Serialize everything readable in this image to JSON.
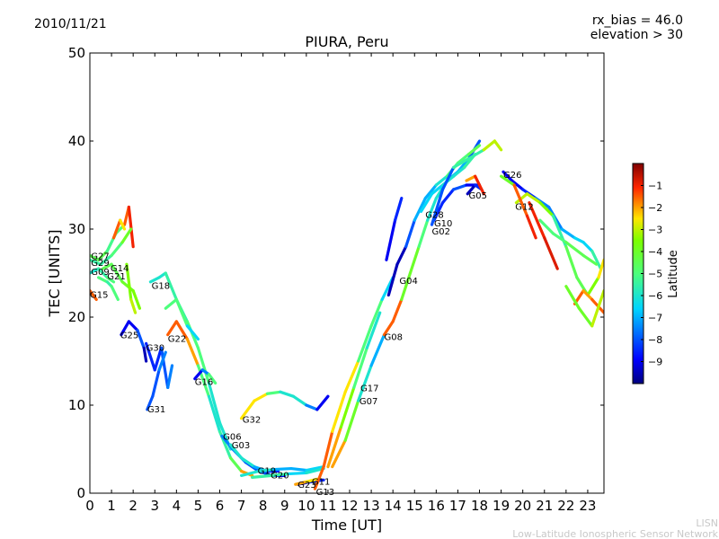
{
  "header": {
    "date": "2010/11/21",
    "rx_bias": "rx_bias = 46.0",
    "elevation": "elevation > 30"
  },
  "footer": {
    "line1": "LISN",
    "line2": "Low-Latitude Ionospheric Sensor Network"
  },
  "chart_data": {
    "type": "line",
    "title": "PIURA, Peru",
    "xlabel": "Time [UT]",
    "ylabel": "TEC [UNITS]",
    "xlim": [
      0,
      23.75
    ],
    "ylim": [
      0,
      50
    ],
    "xticks": [
      0,
      1,
      2,
      3,
      4,
      5,
      6,
      7,
      8,
      9,
      10,
      11,
      12,
      13,
      14,
      15,
      16,
      17,
      18,
      19,
      20,
      21,
      22,
      23
    ],
    "yticks": [
      0,
      10,
      20,
      30,
      40,
      50
    ],
    "grid": false,
    "colorbar": {
      "label": "Latitude",
      "range": [
        -10,
        0
      ],
      "ticks": [
        -1,
        -2,
        -3,
        -4,
        -5,
        -6,
        -7,
        -8,
        -9
      ]
    },
    "series": [
      {
        "name": "G27",
        "label_at": [
          0.05,
          27.0
        ],
        "lat": [
          -4.5,
          -5.2,
          -5.0,
          -1.5,
          -1.0
        ],
        "x": [
          0.0,
          0.4,
          0.8,
          1.2,
          1.6,
          1.8,
          2.0
        ],
        "y": [
          27.0,
          26.5,
          27.5,
          29.5,
          30.5,
          32.5,
          28.0
        ]
      },
      {
        "name": "G29",
        "label_at": [
          0.05,
          26.2
        ],
        "lat": [
          -5.5,
          -5.0,
          -4.0
        ],
        "x": [
          0.0,
          0.5,
          1.0,
          1.5,
          1.9
        ],
        "y": [
          26.5,
          26.0,
          27.0,
          28.5,
          30.0
        ]
      },
      {
        "name": "G14",
        "label_at": [
          0.95,
          25.6
        ],
        "lat": [
          -4.5,
          -4.0,
          -3.5
        ],
        "x": [
          0.6,
          1.0,
          1.5,
          2.0,
          2.3
        ],
        "y": [
          25.5,
          26.0,
          24.0,
          23.0,
          21.0
        ]
      },
      {
        "name": "G09",
        "label_at": [
          0.05,
          25.2
        ],
        "lat": [
          -6.0,
          -5.5,
          -5.0
        ],
        "x": [
          0.0,
          0.4,
          0.8,
          1.1
        ],
        "y": [
          25.0,
          25.5,
          24.5,
          24.0
        ]
      },
      {
        "name": "G21",
        "label_at": [
          0.8,
          24.7
        ],
        "lat": [
          -5.0,
          -5.5,
          -5.0
        ],
        "x": [
          0.4,
          0.8,
          1.0,
          1.3
        ],
        "y": [
          24.5,
          24.0,
          23.5,
          22.0
        ]
      },
      {
        "name": "G15",
        "label_at": [
          0.0,
          22.6
        ],
        "lat": [
          -1.5,
          -2.0
        ],
        "x": [
          0.0,
          0.3
        ],
        "y": [
          23.0,
          22.0
        ]
      },
      {
        "name": "G25",
        "label_at": [
          1.4,
          18.0
        ],
        "lat": [
          -9.0,
          -8.0,
          -9.5
        ],
        "x": [
          1.45,
          1.8,
          2.2,
          2.5,
          2.6
        ],
        "y": [
          18.0,
          19.5,
          18.5,
          16.5,
          15.0
        ]
      },
      {
        "name": "G18",
        "label_at": [
          2.85,
          23.6
        ],
        "lat": [
          -6.0,
          -5.5,
          -5.0,
          -6.0
        ],
        "x": [
          2.8,
          3.2,
          3.5,
          4.0,
          4.5,
          5.0,
          5.5,
          6.0,
          6.5
        ],
        "y": [
          24.0,
          24.5,
          25.0,
          22.0,
          19.5,
          16.5,
          12.5,
          8.0,
          5.0
        ]
      },
      {
        "name": "G30",
        "label_at": [
          2.6,
          16.6
        ],
        "lat": [
          -8.5,
          -8.0,
          -7.5
        ],
        "x": [
          2.6,
          3.0,
          3.3,
          3.6,
          3.8
        ],
        "y": [
          17.0,
          14.0,
          16.5,
          12.0,
          14.5
        ]
      },
      {
        "name": "G22",
        "label_at": [
          3.6,
          17.6
        ],
        "lat": [
          -1.5,
          -2.0,
          -5.0,
          -6.0,
          -5.5,
          -4.5,
          -2.0
        ],
        "x": [
          3.6,
          4.0,
          4.5,
          5.0,
          5.5,
          6.0,
          6.5,
          7.0,
          7.5
        ],
        "y": [
          18.0,
          19.5,
          17.5,
          14.5,
          11.0,
          7.0,
          4.0,
          2.5,
          2.0
        ]
      },
      {
        "name": "G16",
        "label_at": [
          4.85,
          12.7
        ],
        "lat": [
          -9.0,
          -7.5,
          -5.0
        ],
        "x": [
          4.85,
          5.2,
          5.5,
          5.8
        ],
        "y": [
          13.0,
          14.0,
          13.5,
          12.5
        ]
      },
      {
        "name": "G31",
        "label_at": [
          2.65,
          9.6
        ],
        "lat": [
          -8.0,
          -7.5
        ],
        "x": [
          2.65,
          2.9,
          3.2,
          3.5
        ],
        "y": [
          9.5,
          11.0,
          14.0,
          16.0
        ]
      },
      {
        "name": "G32",
        "label_at": [
          7.05,
          8.4
        ],
        "lat": [
          -2.5,
          -5.0,
          -6.0,
          -7.5,
          -9.0
        ],
        "x": [
          7.0,
          7.6,
          8.2,
          8.8,
          9.4,
          10.0,
          10.5,
          11.0
        ],
        "y": [
          8.5,
          10.5,
          11.3,
          11.5,
          11.0,
          10.0,
          9.5,
          11.0
        ]
      },
      {
        "name": "G06",
        "label_at": [
          6.15,
          6.5
        ],
        "lat": [
          -7.5,
          -8.0,
          -9.0
        ],
        "x": [
          6.1,
          6.6,
          7.2,
          7.8,
          8.4,
          9.0
        ],
        "y": [
          6.5,
          5.0,
          3.5,
          2.5,
          2.0,
          2.0
        ]
      },
      {
        "name": "G03",
        "label_at": [
          6.55,
          5.5
        ],
        "lat": [
          -6.0,
          -7.0,
          -8.5
        ],
        "x": [
          6.5,
          7.0,
          7.6,
          8.2,
          8.7
        ],
        "y": [
          5.5,
          4.0,
          3.0,
          2.5,
          2.5
        ]
      },
      {
        "name": "G19",
        "label_at": [
          7.75,
          2.6
        ],
        "lat": [
          -6.0,
          -7.0,
          -6.5
        ],
        "x": [
          7.0,
          7.8,
          8.5,
          9.3,
          10.0,
          10.8
        ],
        "y": [
          2.0,
          2.5,
          2.7,
          2.8,
          2.6,
          3.0
        ]
      },
      {
        "name": "G20",
        "label_at": [
          8.35,
          2.1
        ],
        "lat": [
          -5.5,
          -6.5,
          -6.0
        ],
        "x": [
          7.5,
          8.4,
          9.2,
          10.0,
          10.8
        ],
        "y": [
          1.8,
          2.0,
          2.2,
          2.3,
          2.8
        ]
      },
      {
        "name": "G23",
        "label_at": [
          9.6,
          1.0
        ],
        "lat": [
          -9.5,
          -8.5
        ],
        "x": [
          9.6,
          10.2,
          10.8
        ],
        "y": [
          1.0,
          1.3,
          1.5
        ]
      },
      {
        "name": "G11",
        "label_at": [
          10.25,
          1.4
        ],
        "lat": [
          -2.0,
          -2.5
        ],
        "x": [
          9.5,
          10.0,
          10.5
        ],
        "y": [
          1.0,
          1.3,
          1.6
        ]
      },
      {
        "name": "G13",
        "label_at": [
          10.45,
          0.2
        ],
        "lat": [
          -1.5,
          -2.5,
          -5.0,
          -6.5
        ],
        "x": [
          10.4,
          10.8,
          11.2,
          11.8,
          12.4,
          13.0,
          13.5,
          14.0
        ],
        "y": [
          0.5,
          3.0,
          7.0,
          11.5,
          15.0,
          19.0,
          22.0,
          24.5
        ]
      },
      {
        "name": "G17",
        "label_at": [
          12.5,
          12.0
        ],
        "lat": [
          -2.0,
          -3.5,
          -5.0,
          -6.0
        ],
        "x": [
          11.0,
          11.6,
          12.2,
          12.8,
          13.4
        ],
        "y": [
          3.0,
          7.5,
          12.0,
          16.5,
          20.5
        ]
      },
      {
        "name": "G07",
        "label_at": [
          12.45,
          10.5
        ],
        "lat": [
          -2.0,
          -4.0,
          -6.0,
          -7.0
        ],
        "x": [
          11.2,
          11.8,
          12.4,
          13.0,
          13.6
        ],
        "y": [
          3.0,
          6.0,
          10.5,
          14.5,
          18.0
        ]
      },
      {
        "name": "G08",
        "label_at": [
          13.6,
          17.8
        ],
        "lat": [
          -1.5,
          -4.0,
          -5.0,
          -6.0,
          -7.0,
          -8.0
        ],
        "x": [
          13.6,
          14.0,
          14.4,
          14.8,
          15.2,
          15.6,
          16.0,
          16.5,
          17.0,
          17.5,
          18.0
        ],
        "y": [
          18.0,
          19.5,
          22.0,
          25.0,
          28.0,
          31.0,
          33.5,
          35.5,
          36.5,
          38.0,
          40.0
        ]
      },
      {
        "name": "G04",
        "label_at": [
          14.3,
          24.2
        ],
        "lat": [
          -9.5,
          -8.0,
          -7.0,
          -6.0,
          -5.0,
          -4.5
        ],
        "x": [
          13.8,
          14.2,
          14.6,
          15.0,
          15.5,
          16.0,
          16.5,
          17.0,
          17.5,
          18.0
        ],
        "y": [
          22.5,
          26.0,
          28.0,
          31.0,
          33.5,
          35.0,
          36.0,
          37.5,
          38.5,
          39.5
        ]
      },
      {
        "name": "G28",
        "label_at": [
          15.5,
          31.7
        ],
        "lat": [
          -6.5,
          -6.0,
          -5.5
        ],
        "x": [
          15.3,
          15.8,
          16.3,
          16.8,
          17.3,
          17.8
        ],
        "y": [
          32.0,
          34.0,
          35.0,
          36.0,
          37.0,
          38.5
        ]
      },
      {
        "name": "G10",
        "label_at": [
          15.9,
          30.7
        ],
        "lat": [
          -8.5,
          -8.0,
          -9.0
        ],
        "x": [
          15.9,
          16.3,
          16.8,
          17.4,
          18.0
        ],
        "y": [
          31.0,
          33.0,
          34.5,
          35.0,
          35.0
        ]
      },
      {
        "name": "G02",
        "label_at": [
          15.8,
          29.8
        ],
        "lat": [
          -8.0,
          -5.5,
          -3.0
        ],
        "x": [
          15.8,
          16.3,
          16.8,
          17.5,
          18.2,
          18.7,
          19.0
        ],
        "y": [
          30.5,
          34.5,
          37.0,
          38.0,
          39.0,
          40.0,
          39.0
        ]
      },
      {
        "name": "G05",
        "label_at": [
          17.5,
          33.9
        ],
        "lat": [
          -9.5,
          -8.5
        ],
        "x": [
          17.45,
          17.8,
          18.1
        ],
        "y": [
          34.0,
          35.0,
          34.5
        ]
      },
      {
        "name": "G26",
        "label_at": [
          19.1,
          36.2
        ],
        "lat": [
          -9.0,
          -8.5,
          -7.5,
          -7.0,
          -6.5,
          -5.5
        ],
        "x": [
          19.1,
          19.5,
          20.0,
          20.6,
          21.2,
          21.8,
          22.4,
          22.8,
          23.2,
          23.6
        ],
        "y": [
          36.5,
          35.5,
          34.5,
          33.5,
          32.5,
          30.0,
          29.0,
          28.5,
          27.5,
          25.5
        ]
      },
      {
        "name": "G12",
        "label_at": [
          19.65,
          32.6
        ],
        "lat": [
          -3.0,
          -3.5,
          -5.5,
          -4.5,
          -3.5,
          -2.5
        ],
        "x": [
          19.7,
          20.2,
          20.8,
          21.4,
          22.0,
          22.5,
          23.0,
          23.5,
          23.75
        ],
        "y": [
          33.0,
          34.0,
          33.0,
          31.5,
          28.0,
          24.5,
          22.5,
          24.5,
          26.5
        ]
      },
      {
        "name": "",
        "label_at": null,
        "lat": [
          -4.0,
          -1.5,
          -1.0
        ],
        "x": [
          19.0,
          19.6,
          20.2,
          20.6
        ],
        "y": [
          36.0,
          35.0,
          31.5,
          29.0
        ]
      },
      {
        "name": "",
        "label_at": null,
        "lat": [
          -1.5,
          -2.0,
          -1.5
        ],
        "x": [
          22.4,
          22.8,
          23.2,
          23.75
        ],
        "y": [
          21.5,
          23.0,
          22.0,
          20.5
        ]
      },
      {
        "name": "",
        "label_at": null,
        "lat": [
          -1.0,
          -0.8
        ],
        "x": [
          20.3,
          21.0,
          21.6
        ],
        "y": [
          33.0,
          29.0,
          25.5
        ]
      },
      {
        "name": "",
        "label_at": null,
        "lat": [
          -9.0,
          -8.5
        ],
        "x": [
          13.7,
          14.1,
          14.4
        ],
        "y": [
          26.5,
          31.0,
          33.5
        ]
      },
      {
        "name": "",
        "label_at": null,
        "lat": [
          -2.0,
          -1.0
        ],
        "x": [
          17.4,
          17.8,
          18.2
        ],
        "y": [
          35.5,
          36.0,
          34.0
        ]
      },
      {
        "name": "",
        "label_at": null,
        "lat": [
          -5.0,
          -4.5
        ],
        "x": [
          20.8,
          21.4,
          22.0,
          22.8,
          23.4
        ],
        "y": [
          31.0,
          29.5,
          28.5,
          27.0,
          26.0
        ]
      },
      {
        "name": "",
        "label_at": null,
        "lat": [
          -4.0,
          -3.0
        ],
        "x": [
          22.0,
          22.6,
          23.2,
          23.75
        ],
        "y": [
          23.5,
          21.0,
          19.0,
          23.0
        ]
      },
      {
        "name": "",
        "label_at": null,
        "lat": [
          -3.5,
          -3.0
        ],
        "x": [
          1.7,
          1.9,
          2.1
        ],
        "y": [
          26.0,
          22.0,
          20.5
        ]
      },
      {
        "name": "",
        "label_at": null,
        "lat": [
          -5.0,
          -6.5
        ],
        "x": [
          3.5,
          4.0,
          4.5,
          5.0
        ],
        "y": [
          21.0,
          22.0,
          19.0,
          17.5
        ]
      },
      {
        "name": "",
        "label_at": null,
        "lat": [
          -1.5,
          -2.5
        ],
        "x": [
          1.1,
          1.4,
          1.6
        ],
        "y": [
          29.0,
          31.0,
          30.0
        ]
      }
    ]
  }
}
